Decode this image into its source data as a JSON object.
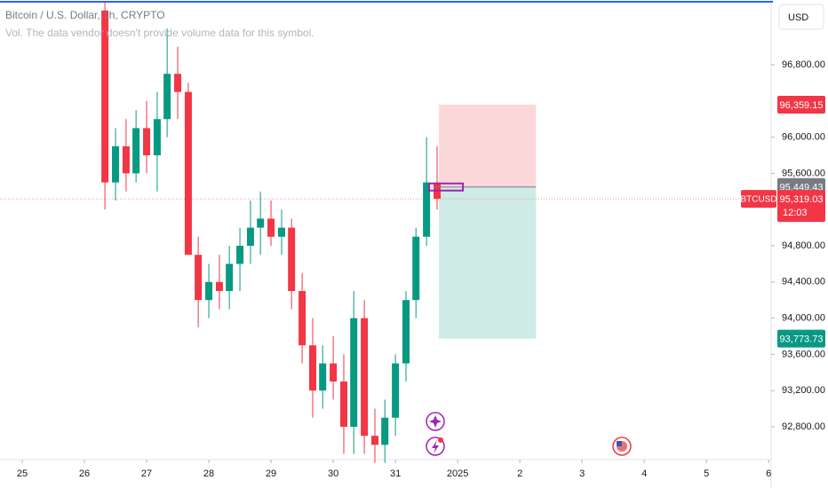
{
  "chart_data": {
    "type": "candlestick",
    "title": "Bitcoin / U.S. Dollar, 1h, CRYPTO",
    "subtitle": "Vol. The data vendor doesn't provide volume data for this symbol.",
    "currency": "USD",
    "symbol": "BTCUSD",
    "countdown": "12:03",
    "up_color": "#089981",
    "down_color": "#f23645",
    "xlim": [
      -0.357,
      12.04
    ],
    "ylim": [
      92437,
      97516
    ],
    "xticks": [
      {
        "value": 0,
        "label": "25"
      },
      {
        "value": 1,
        "label": "26"
      },
      {
        "value": 2,
        "label": "27"
      },
      {
        "value": 3,
        "label": "28"
      },
      {
        "value": 4,
        "label": "29"
      },
      {
        "value": 5,
        "label": "30"
      },
      {
        "value": 6,
        "label": "31"
      },
      {
        "value": 7,
        "label": "2025"
      },
      {
        "value": 8,
        "label": "2"
      },
      {
        "value": 9,
        "label": "3"
      },
      {
        "value": 10,
        "label": "4"
      },
      {
        "value": 11,
        "label": "5"
      },
      {
        "value": 12,
        "label": "6"
      }
    ],
    "yticks": [
      {
        "value": 96800,
        "label": "96,800.00"
      },
      {
        "value": 96000,
        "label": "96,000.00"
      },
      {
        "value": 95600,
        "label": "95,600.00"
      },
      {
        "value": 94800,
        "label": "94,800.00"
      },
      {
        "value": 94400,
        "label": "94,400.00"
      },
      {
        "value": 94000,
        "label": "94,000.00"
      },
      {
        "value": 93600,
        "label": "93,600.00"
      },
      {
        "value": 93200,
        "label": "93,200.00"
      },
      {
        "value": 92800,
        "label": "92,800.00"
      }
    ],
    "x": [
      1.33,
      1.5,
      1.67,
      1.83,
      2.0,
      2.17,
      2.33,
      2.5,
      2.67,
      2.83,
      3.0,
      3.17,
      3.33,
      3.5,
      3.67,
      3.83,
      4.0,
      4.17,
      4.33,
      4.5,
      4.67,
      4.83,
      5.0,
      5.17,
      5.33,
      5.5,
      5.67,
      5.83,
      6.0,
      6.17,
      6.33,
      6.5,
      6.67
    ],
    "open": [
      97400,
      95500,
      95900,
      95600,
      96100,
      95800,
      96200,
      96700,
      96500,
      94700,
      94200,
      94400,
      94300,
      94600,
      94800,
      95000,
      95100,
      94900,
      95000,
      94300,
      93700,
      93200,
      93500,
      93300,
      92800,
      94000,
      92700,
      92600,
      92900,
      93500,
      94200,
      94900,
      95500
    ],
    "high": [
      97500,
      96100,
      96200,
      96300,
      96400,
      96500,
      97200,
      97000,
      96600,
      94900,
      94600,
      94700,
      94800,
      95000,
      95300,
      95400,
      95300,
      95200,
      95100,
      94500,
      94000,
      93700,
      93800,
      93600,
      94300,
      94200,
      93000,
      93100,
      93600,
      94300,
      95000,
      96000,
      95900
    ],
    "low": [
      95200,
      95300,
      95400,
      95500,
      95600,
      95400,
      96000,
      96200,
      94700,
      93900,
      94000,
      94100,
      94100,
      94300,
      94600,
      94700,
      94800,
      94700,
      94100,
      93500,
      92900,
      93000,
      93100,
      92500,
      92500,
      92500,
      92400,
      92400,
      92700,
      93300,
      94000,
      94800,
      95200
    ],
    "close": [
      95500,
      95900,
      95600,
      96100,
      95800,
      96200,
      96700,
      96500,
      94700,
      94200,
      94400,
      94300,
      94600,
      94800,
      95000,
      95100,
      94900,
      95000,
      94300,
      93700,
      93200,
      93500,
      93300,
      92800,
      94000,
      92700,
      92600,
      92900,
      93500,
      94200,
      94900,
      95500,
      95319.03
    ],
    "last_price": {
      "value": 95319.03,
      "label": "95,319.03"
    },
    "position": {
      "x": [
        6.7,
        8.26
      ],
      "stop": {
        "value": 96359.15,
        "label": "96,359.15"
      },
      "entry": {
        "value": 95449.43,
        "label": "95,449.43"
      },
      "target": {
        "value": 93773.73,
        "label": "93,773.73"
      }
    }
  }
}
